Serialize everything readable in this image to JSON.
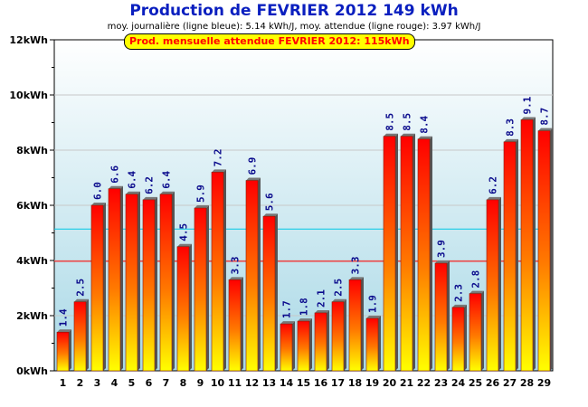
{
  "header": {
    "title": "Production de FEVRIER 2012  149 kWh",
    "subtitle": "moy. journalière (ligne bleue): 5.14 kWh/J,   moy. attendue (ligne rouge): 3.97 kWh/J",
    "expected_label": "Prod. mensuelle attendue FEVRIER 2012: 115kWh"
  },
  "colors": {
    "bar_top": "#ff0000",
    "bar_bottom": "#ffff00",
    "blue_line": "#00c8e6",
    "red_line": "#ff0000",
    "plot_top": "#ffffff",
    "plot_bottom": "#a8d8e6",
    "value_label": "#0a0a8c"
  },
  "chart_data": {
    "type": "bar",
    "title": "Production de FEVRIER 2012  149 kWh",
    "xlabel": "",
    "ylabel": "",
    "categories": [
      "1",
      "2",
      "3",
      "4",
      "5",
      "6",
      "7",
      "8",
      "9",
      "10",
      "11",
      "12",
      "13",
      "14",
      "15",
      "16",
      "17",
      "18",
      "19",
      "20",
      "21",
      "22",
      "23",
      "24",
      "25",
      "26",
      "27",
      "28",
      "29"
    ],
    "values": [
      1.4,
      2.5,
      6.0,
      6.6,
      6.4,
      6.2,
      6.4,
      4.5,
      5.9,
      7.2,
      3.3,
      6.9,
      5.6,
      1.7,
      1.8,
      2.1,
      2.5,
      3.3,
      1.9,
      8.5,
      8.5,
      8.4,
      3.9,
      2.3,
      2.8,
      6.2,
      8.3,
      9.1,
      8.7
    ],
    "value_labels": [
      "1.4",
      "2.5",
      "6.0",
      "6.6",
      "6.4",
      "6.2",
      "6.4",
      "4.5",
      "5.9",
      "7.2",
      "3.3",
      "6.9",
      "5.6",
      "1.7",
      "1.8",
      "2.1",
      "2.5",
      "3.3",
      "1.9",
      "8.5",
      "8.5",
      "8.4",
      "3.9",
      "2.3",
      "2.8",
      "6.2",
      "8.3",
      "9.1",
      "8.7"
    ],
    "ylim": [
      0,
      12
    ],
    "yticks": [
      0,
      2,
      4,
      6,
      8,
      10,
      12
    ],
    "ytick_labels": [
      "0kWh",
      "2kWh",
      "4kWh",
      "6kWh",
      "8kWh",
      "10kWh",
      "12kWh"
    ],
    "reference_lines": [
      {
        "value": 5.14,
        "color": "#00c8e6"
      },
      {
        "value": 3.97,
        "color": "#ff0000"
      }
    ],
    "grid": true
  }
}
